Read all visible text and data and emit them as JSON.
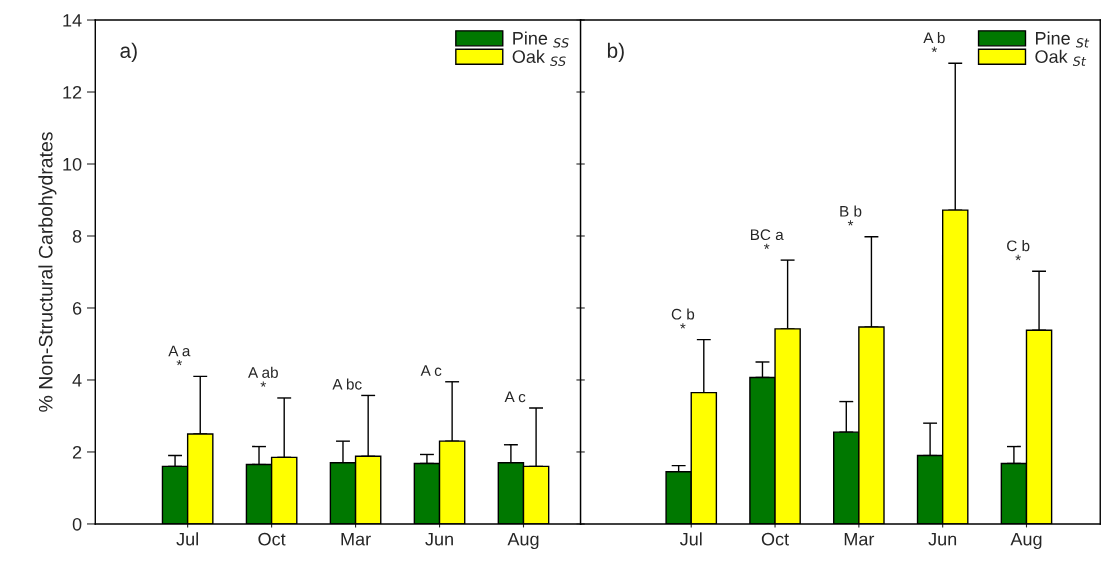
{
  "chart_data": [
    {
      "type": "bar",
      "title": "a)",
      "ylabel": "% Non-Structural Carbohydrates",
      "categories": [
        "Jul",
        "Oct",
        "Mar",
        "Jun",
        "Aug"
      ],
      "ylim": [
        0,
        14
      ],
      "yticks": [
        0,
        2,
        4,
        6,
        8,
        10,
        12,
        14
      ],
      "legend": "top right",
      "grid": false,
      "series": [
        {
          "name": "Pine $_{SS}$",
          "color": "#007800",
          "values": [
            1.6,
            1.65,
            1.7,
            1.68,
            1.7
          ],
          "errors": [
            [
              1.6,
              1.9
            ],
            [
              1.65,
              2.15
            ],
            [
              1.7,
              2.3
            ],
            [
              1.68,
              1.93
            ],
            [
              1.7,
              2.2
            ]
          ]
        },
        {
          "name": "Oak $_{SS}$",
          "color": "#ffff00",
          "values": [
            2.5,
            1.85,
            1.88,
            2.3,
            1.6
          ],
          "errors": [
            [
              2.5,
              4.1
            ],
            [
              1.85,
              3.5
            ],
            [
              1.88,
              3.57
            ],
            [
              2.3,
              3.95
            ],
            [
              1.6,
              3.22
            ]
          ]
        }
      ],
      "annotations": [
        "A a\n*",
        "A ab\n*",
        "A bc",
        "A c",
        "A c"
      ]
    },
    {
      "type": "bar",
      "title": "b)",
      "categories": [
        "Jul",
        "Oct",
        "Mar",
        "Jun",
        "Aug"
      ],
      "ylim": [
        0,
        14
      ],
      "yticks": [
        0,
        2,
        4,
        6,
        8,
        10,
        12,
        14
      ],
      "tick_labels": "x",
      "legend": "top right",
      "grid": false,
      "series": [
        {
          "name": "Pine $_{St}$",
          "color": "#007800",
          "values": [
            1.45,
            4.07,
            2.55,
            1.9,
            1.68
          ],
          "errors": [
            [
              1.45,
              1.62
            ],
            [
              4.07,
              4.5
            ],
            [
              2.55,
              3.4
            ],
            [
              1.9,
              2.8
            ],
            [
              1.68,
              2.15
            ]
          ]
        },
        {
          "name": "Oak $_{St}$",
          "color": "#ffff00",
          "values": [
            3.65,
            5.42,
            5.47,
            8.72,
            5.38
          ],
          "errors": [
            [
              3.65,
              5.12
            ],
            [
              5.42,
              7.33
            ],
            [
              5.47,
              7.98
            ],
            [
              8.72,
              12.8
            ],
            [
              5.38,
              7.02
            ]
          ]
        }
      ],
      "annotations": [
        "C b\n*",
        "BC a\n*",
        "B b\n*",
        "A b\n*",
        "C b\n*"
      ]
    }
  ]
}
